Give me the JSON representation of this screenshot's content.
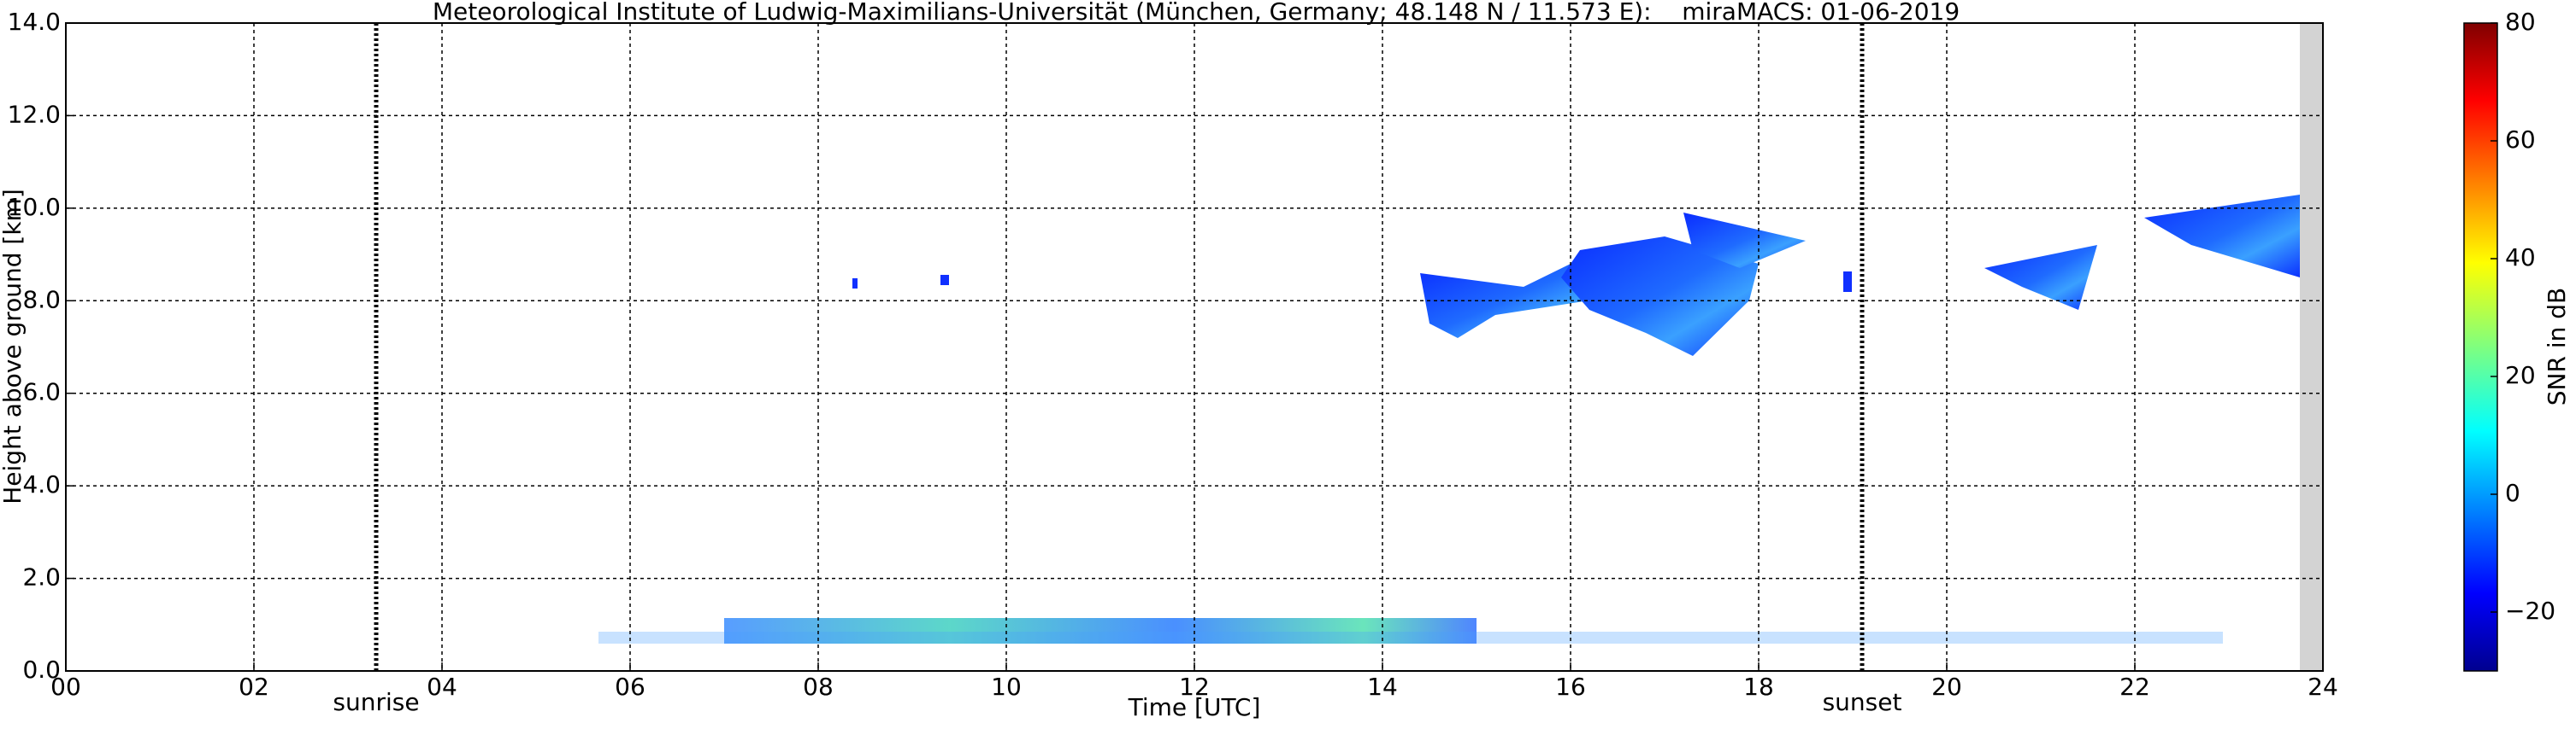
{
  "chart_data": {
    "type": "time-height",
    "title": "Meteorological Institute of Ludwig-Maximilians-Universität (München, Germany; 48.148 N / 11.573 E):    miraMACS: 01-06-2019",
    "x_label": "Time [UTC]",
    "y_label": "Height above ground [km]",
    "xlim": [
      0,
      24
    ],
    "ylim": [
      0,
      14
    ],
    "xticks": [
      {
        "value": 0,
        "label": "00"
      },
      {
        "value": 2,
        "label": "02"
      },
      {
        "value": 4,
        "label": "04"
      },
      {
        "value": 6,
        "label": "06"
      },
      {
        "value": 8,
        "label": "08"
      },
      10,
      12,
      14,
      16,
      18,
      20,
      22,
      24
    ],
    "yticks": [
      {
        "value": 0,
        "label": "0.0"
      },
      {
        "value": 2,
        "label": "2.0"
      },
      {
        "value": 4,
        "label": "4.0"
      },
      {
        "value": 6,
        "label": "6.0"
      },
      {
        "value": 8,
        "label": "8.0"
      },
      {
        "value": 10,
        "label": "10.0"
      },
      {
        "value": 12,
        "label": "12.0"
      },
      {
        "value": 14,
        "label": "14.0"
      }
    ],
    "grid": true,
    "annotations": [
      {
        "label": "sunrise",
        "x": 3.3
      },
      {
        "label": "sunset",
        "x": 19.1
      }
    ],
    "colorbar": {
      "label": "SNR in dB",
      "lim": [
        -30,
        80
      ],
      "ticks": [
        {
          "value": -20,
          "label": "−20"
        },
        0,
        20,
        40,
        60,
        80
      ]
    }
  }
}
